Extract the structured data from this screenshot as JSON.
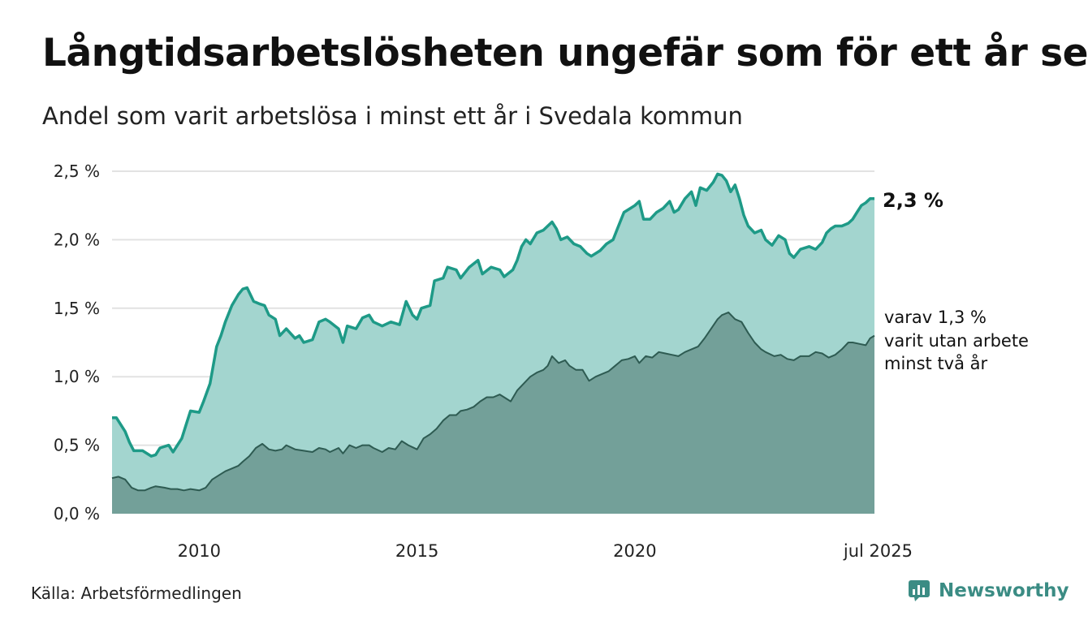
{
  "title": "Långtidsarbetslösheten ungefär som för ett år sen",
  "subtitle": "Andel som varit arbetslösa i minst ett år i Svedala kommun",
  "source": "Källa: Arbetsförmedlingen",
  "logo_text": "Newsworthy",
  "colors": {
    "total_fill": "#a3d5cf",
    "total_line": "#1e9a87",
    "sub_fill": "#73a099",
    "sub_line": "#2e5b52",
    "logo": "#3b8c84"
  },
  "annotations": {
    "total_label": "2,3 %",
    "sub_label_lines": [
      "varav 1,3 %",
      "varit utan arbete",
      "minst två år"
    ]
  },
  "chart_data": {
    "type": "area",
    "x_unit": "year",
    "x_range": [
      2008.0,
      2025.5
    ],
    "ylim": [
      0,
      2.5
    ],
    "y_ticks": [
      {
        "value": 0,
        "label": "0,0 %"
      },
      {
        "value": 0.5,
        "label": "0,5 %"
      },
      {
        "value": 1.0,
        "label": "1,0 %"
      },
      {
        "value": 1.5,
        "label": "1,5 %"
      },
      {
        "value": 2.0,
        "label": "2,0 %"
      },
      {
        "value": 2.5,
        "label": "2,5 %"
      }
    ],
    "x_ticks": [
      {
        "value": 2010,
        "label": "2010"
      },
      {
        "value": 2015,
        "label": "2015"
      },
      {
        "value": 2020,
        "label": "2020"
      },
      {
        "value": 2025.5,
        "label": "jul 2025"
      }
    ],
    "grid": true,
    "series": [
      {
        "points": [
          [
            2008.0,
            0.7
          ],
          [
            2008.1,
            0.7
          ],
          [
            2008.3,
            0.6
          ],
          [
            2008.4,
            0.52
          ],
          [
            2008.5,
            0.46
          ],
          [
            2008.7,
            0.46
          ],
          [
            2008.9,
            0.42
          ],
          [
            2009.0,
            0.43
          ],
          [
            2009.1,
            0.48
          ],
          [
            2009.3,
            0.5
          ],
          [
            2009.4,
            0.45
          ],
          [
            2009.6,
            0.55
          ],
          [
            2009.7,
            0.65
          ],
          [
            2009.8,
            0.75
          ],
          [
            2010.0,
            0.74
          ],
          [
            2010.1,
            0.82
          ],
          [
            2010.25,
            0.95
          ],
          [
            2010.4,
            1.22
          ],
          [
            2010.5,
            1.3
          ],
          [
            2010.6,
            1.4
          ],
          [
            2010.75,
            1.52
          ],
          [
            2010.9,
            1.6
          ],
          [
            2011.0,
            1.64
          ],
          [
            2011.1,
            1.65
          ],
          [
            2011.25,
            1.55
          ],
          [
            2011.4,
            1.53
          ],
          [
            2011.5,
            1.52
          ],
          [
            2011.6,
            1.45
          ],
          [
            2011.75,
            1.42
          ],
          [
            2011.85,
            1.3
          ],
          [
            2012.0,
            1.35
          ],
          [
            2012.2,
            1.28
          ],
          [
            2012.3,
            1.3
          ],
          [
            2012.4,
            1.25
          ],
          [
            2012.6,
            1.27
          ],
          [
            2012.75,
            1.4
          ],
          [
            2012.9,
            1.42
          ],
          [
            2013.0,
            1.4
          ],
          [
            2013.2,
            1.35
          ],
          [
            2013.3,
            1.25
          ],
          [
            2013.4,
            1.37
          ],
          [
            2013.6,
            1.35
          ],
          [
            2013.75,
            1.43
          ],
          [
            2013.9,
            1.45
          ],
          [
            2014.0,
            1.4
          ],
          [
            2014.2,
            1.37
          ],
          [
            2014.4,
            1.4
          ],
          [
            2014.6,
            1.38
          ],
          [
            2014.75,
            1.55
          ],
          [
            2014.9,
            1.45
          ],
          [
            2015.0,
            1.42
          ],
          [
            2015.1,
            1.5
          ],
          [
            2015.3,
            1.52
          ],
          [
            2015.4,
            1.7
          ],
          [
            2015.6,
            1.72
          ],
          [
            2015.7,
            1.8
          ],
          [
            2015.9,
            1.78
          ],
          [
            2016.0,
            1.72
          ],
          [
            2016.2,
            1.8
          ],
          [
            2016.4,
            1.85
          ],
          [
            2016.5,
            1.75
          ],
          [
            2016.7,
            1.8
          ],
          [
            2016.9,
            1.78
          ],
          [
            2017.0,
            1.73
          ],
          [
            2017.2,
            1.78
          ],
          [
            2017.3,
            1.85
          ],
          [
            2017.4,
            1.95
          ],
          [
            2017.5,
            2.0
          ],
          [
            2017.6,
            1.97
          ],
          [
            2017.75,
            2.05
          ],
          [
            2017.9,
            2.07
          ],
          [
            2018.0,
            2.1
          ],
          [
            2018.1,
            2.13
          ],
          [
            2018.2,
            2.08
          ],
          [
            2018.3,
            2.0
          ],
          [
            2018.45,
            2.02
          ],
          [
            2018.6,
            1.97
          ],
          [
            2018.75,
            1.95
          ],
          [
            2018.9,
            1.9
          ],
          [
            2019.0,
            1.88
          ],
          [
            2019.2,
            1.92
          ],
          [
            2019.35,
            1.97
          ],
          [
            2019.5,
            2.0
          ],
          [
            2019.6,
            2.08
          ],
          [
            2019.75,
            2.2
          ],
          [
            2019.9,
            2.23
          ],
          [
            2020.0,
            2.25
          ],
          [
            2020.1,
            2.28
          ],
          [
            2020.2,
            2.15
          ],
          [
            2020.35,
            2.15
          ],
          [
            2020.5,
            2.2
          ],
          [
            2020.65,
            2.23
          ],
          [
            2020.8,
            2.28
          ],
          [
            2020.9,
            2.2
          ],
          [
            2021.0,
            2.22
          ],
          [
            2021.15,
            2.3
          ],
          [
            2021.3,
            2.35
          ],
          [
            2021.4,
            2.25
          ],
          [
            2021.5,
            2.38
          ],
          [
            2021.65,
            2.36
          ],
          [
            2021.8,
            2.42
          ],
          [
            2021.9,
            2.48
          ],
          [
            2022.0,
            2.47
          ],
          [
            2022.1,
            2.43
          ],
          [
            2022.2,
            2.35
          ],
          [
            2022.3,
            2.4
          ],
          [
            2022.4,
            2.3
          ],
          [
            2022.5,
            2.18
          ],
          [
            2022.6,
            2.1
          ],
          [
            2022.75,
            2.05
          ],
          [
            2022.9,
            2.07
          ],
          [
            2023.0,
            2.0
          ],
          [
            2023.15,
            1.96
          ],
          [
            2023.3,
            2.03
          ],
          [
            2023.45,
            2.0
          ],
          [
            2023.55,
            1.9
          ],
          [
            2023.65,
            1.87
          ],
          [
            2023.8,
            1.93
          ],
          [
            2024.0,
            1.95
          ],
          [
            2024.15,
            1.93
          ],
          [
            2024.3,
            1.98
          ],
          [
            2024.4,
            2.05
          ],
          [
            2024.5,
            2.08
          ],
          [
            2024.6,
            2.1
          ],
          [
            2024.75,
            2.1
          ],
          [
            2024.9,
            2.12
          ],
          [
            2025.0,
            2.15
          ],
          [
            2025.1,
            2.2
          ],
          [
            2025.2,
            2.25
          ],
          [
            2025.3,
            2.27
          ],
          [
            2025.4,
            2.3
          ],
          [
            2025.5,
            2.3
          ]
        ]
      },
      {
        "points": [
          [
            2008.0,
            0.26
          ],
          [
            2008.15,
            0.27
          ],
          [
            2008.3,
            0.25
          ],
          [
            2008.45,
            0.19
          ],
          [
            2008.6,
            0.17
          ],
          [
            2008.75,
            0.17
          ],
          [
            2008.9,
            0.19
          ],
          [
            2009.0,
            0.2
          ],
          [
            2009.2,
            0.19
          ],
          [
            2009.35,
            0.18
          ],
          [
            2009.5,
            0.18
          ],
          [
            2009.65,
            0.17
          ],
          [
            2009.8,
            0.18
          ],
          [
            2010.0,
            0.17
          ],
          [
            2010.15,
            0.19
          ],
          [
            2010.3,
            0.25
          ],
          [
            2010.45,
            0.28
          ],
          [
            2010.6,
            0.31
          ],
          [
            2010.75,
            0.33
          ],
          [
            2010.9,
            0.35
          ],
          [
            2011.0,
            0.38
          ],
          [
            2011.15,
            0.42
          ],
          [
            2011.3,
            0.48
          ],
          [
            2011.45,
            0.51
          ],
          [
            2011.6,
            0.47
          ],
          [
            2011.75,
            0.46
          ],
          [
            2011.9,
            0.47
          ],
          [
            2012.0,
            0.5
          ],
          [
            2012.2,
            0.47
          ],
          [
            2012.4,
            0.46
          ],
          [
            2012.6,
            0.45
          ],
          [
            2012.75,
            0.48
          ],
          [
            2012.9,
            0.47
          ],
          [
            2013.0,
            0.45
          ],
          [
            2013.2,
            0.48
          ],
          [
            2013.3,
            0.44
          ],
          [
            2013.45,
            0.5
          ],
          [
            2013.6,
            0.48
          ],
          [
            2013.75,
            0.5
          ],
          [
            2013.9,
            0.5
          ],
          [
            2014.0,
            0.48
          ],
          [
            2014.2,
            0.45
          ],
          [
            2014.35,
            0.48
          ],
          [
            2014.5,
            0.47
          ],
          [
            2014.65,
            0.53
          ],
          [
            2014.8,
            0.5
          ],
          [
            2015.0,
            0.47
          ],
          [
            2015.15,
            0.55
          ],
          [
            2015.3,
            0.58
          ],
          [
            2015.45,
            0.62
          ],
          [
            2015.6,
            0.68
          ],
          [
            2015.75,
            0.72
          ],
          [
            2015.9,
            0.72
          ],
          [
            2016.0,
            0.75
          ],
          [
            2016.15,
            0.76
          ],
          [
            2016.3,
            0.78
          ],
          [
            2016.45,
            0.82
          ],
          [
            2016.6,
            0.85
          ],
          [
            2016.75,
            0.85
          ],
          [
            2016.9,
            0.87
          ],
          [
            2017.0,
            0.85
          ],
          [
            2017.15,
            0.82
          ],
          [
            2017.3,
            0.9
          ],
          [
            2017.45,
            0.95
          ],
          [
            2017.6,
            1.0
          ],
          [
            2017.75,
            1.03
          ],
          [
            2017.9,
            1.05
          ],
          [
            2018.0,
            1.08
          ],
          [
            2018.1,
            1.15
          ],
          [
            2018.25,
            1.1
          ],
          [
            2018.4,
            1.12
          ],
          [
            2018.5,
            1.08
          ],
          [
            2018.65,
            1.05
          ],
          [
            2018.8,
            1.05
          ],
          [
            2018.95,
            0.97
          ],
          [
            2019.1,
            1.0
          ],
          [
            2019.25,
            1.02
          ],
          [
            2019.4,
            1.04
          ],
          [
            2019.55,
            1.08
          ],
          [
            2019.7,
            1.12
          ],
          [
            2019.85,
            1.13
          ],
          [
            2020.0,
            1.15
          ],
          [
            2020.1,
            1.1
          ],
          [
            2020.25,
            1.15
          ],
          [
            2020.4,
            1.14
          ],
          [
            2020.55,
            1.18
          ],
          [
            2020.7,
            1.17
          ],
          [
            2020.85,
            1.16
          ],
          [
            2021.0,
            1.15
          ],
          [
            2021.15,
            1.18
          ],
          [
            2021.3,
            1.2
          ],
          [
            2021.45,
            1.22
          ],
          [
            2021.6,
            1.28
          ],
          [
            2021.75,
            1.35
          ],
          [
            2021.9,
            1.42
          ],
          [
            2022.0,
            1.45
          ],
          [
            2022.15,
            1.47
          ],
          [
            2022.3,
            1.42
          ],
          [
            2022.45,
            1.4
          ],
          [
            2022.6,
            1.32
          ],
          [
            2022.75,
            1.25
          ],
          [
            2022.9,
            1.2
          ],
          [
            2023.0,
            1.18
          ],
          [
            2023.2,
            1.15
          ],
          [
            2023.35,
            1.16
          ],
          [
            2023.5,
            1.13
          ],
          [
            2023.65,
            1.12
          ],
          [
            2023.8,
            1.15
          ],
          [
            2024.0,
            1.15
          ],
          [
            2024.15,
            1.18
          ],
          [
            2024.3,
            1.17
          ],
          [
            2024.45,
            1.14
          ],
          [
            2024.6,
            1.16
          ],
          [
            2024.75,
            1.2
          ],
          [
            2024.9,
            1.25
          ],
          [
            2025.0,
            1.25
          ],
          [
            2025.15,
            1.24
          ],
          [
            2025.3,
            1.23
          ],
          [
            2025.4,
            1.28
          ],
          [
            2025.5,
            1.3
          ]
        ]
      }
    ]
  }
}
